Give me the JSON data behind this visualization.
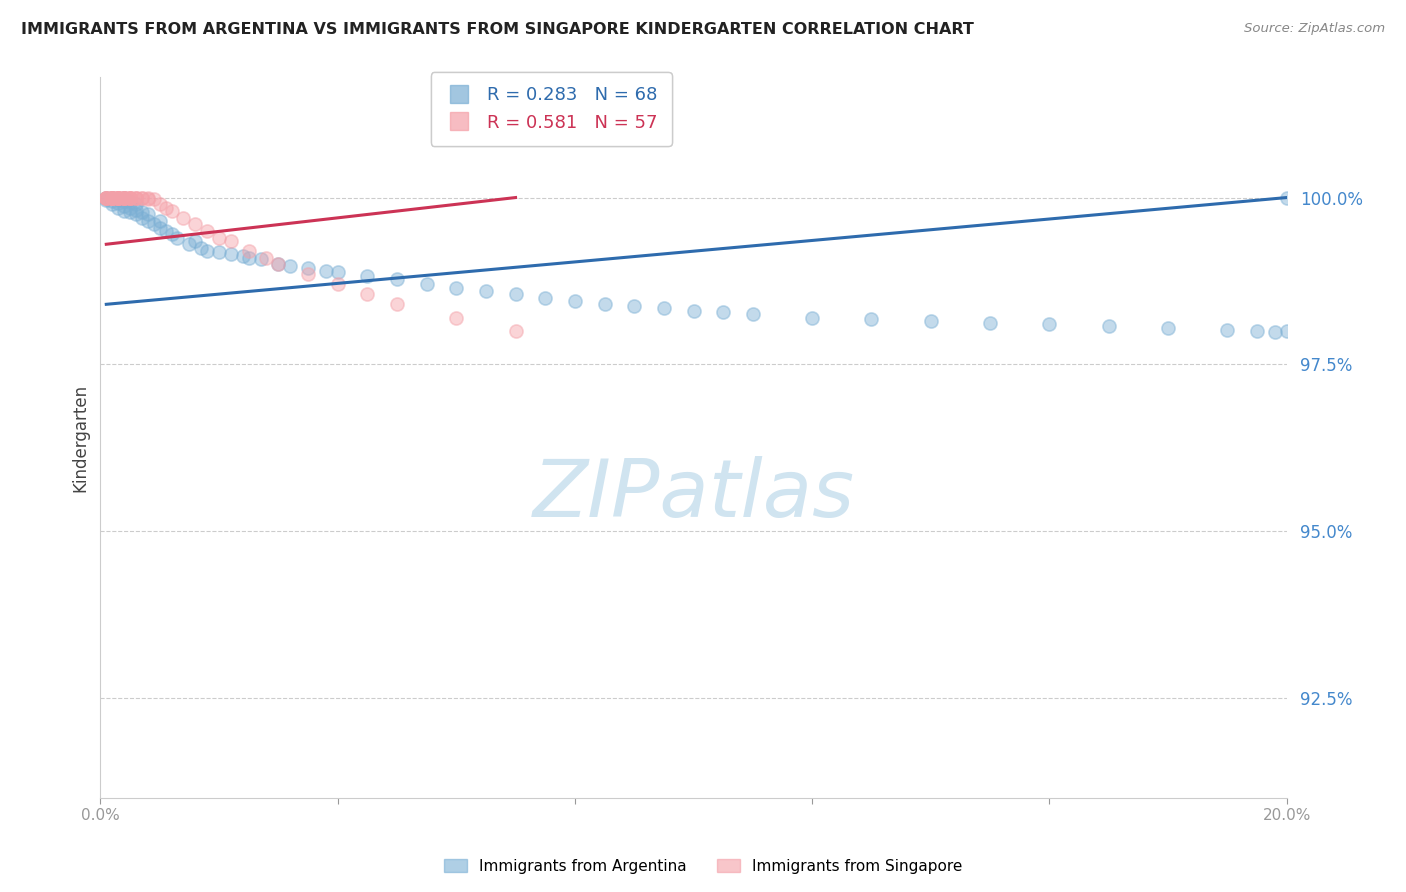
{
  "title": "IMMIGRANTS FROM ARGENTINA VS IMMIGRANTS FROM SINGAPORE KINDERGARTEN CORRELATION CHART",
  "source": "Source: ZipAtlas.com",
  "ylabel": "Kindergarten",
  "ytick_labels": [
    "100.0%",
    "97.5%",
    "95.0%",
    "92.5%"
  ],
  "ytick_values": [
    1.0,
    0.975,
    0.95,
    0.925
  ],
  "xlim": [
    0.0,
    0.2
  ],
  "ylim": [
    0.91,
    1.018
  ],
  "argentina_color": "#7BAFD4",
  "singapore_color": "#F4A0A8",
  "argentina_line_color": "#2E6BAD",
  "singapore_line_color": "#CC3355",
  "argentina_R": 0.283,
  "argentina_N": 68,
  "singapore_R": 0.581,
  "singapore_N": 57,
  "watermark": "ZIPatlas",
  "watermark_color": "#D0E4F0",
  "argentina_scatter_x": [
    0.001,
    0.001,
    0.002,
    0.002,
    0.002,
    0.003,
    0.003,
    0.003,
    0.004,
    0.004,
    0.004,
    0.004,
    0.005,
    0.005,
    0.005,
    0.006,
    0.006,
    0.006,
    0.007,
    0.007,
    0.008,
    0.008,
    0.009,
    0.01,
    0.01,
    0.011,
    0.012,
    0.013,
    0.015,
    0.016,
    0.017,
    0.018,
    0.02,
    0.022,
    0.024,
    0.025,
    0.027,
    0.03,
    0.032,
    0.035,
    0.038,
    0.04,
    0.045,
    0.05,
    0.055,
    0.06,
    0.065,
    0.07,
    0.075,
    0.08,
    0.085,
    0.09,
    0.095,
    0.1,
    0.105,
    0.11,
    0.12,
    0.13,
    0.14,
    0.15,
    0.16,
    0.17,
    0.18,
    0.19,
    0.195,
    0.198,
    0.2,
    0.2
  ],
  "argentina_scatter_y": [
    0.9997,
    1.0,
    0.999,
    0.9995,
    1.0,
    0.9985,
    0.9992,
    0.9998,
    0.998,
    0.9988,
    0.9995,
    1.0,
    0.9978,
    0.9985,
    0.9993,
    0.9975,
    0.9982,
    0.999,
    0.997,
    0.9978,
    0.9965,
    0.9975,
    0.996,
    0.9955,
    0.9965,
    0.995,
    0.9945,
    0.994,
    0.993,
    0.9935,
    0.9925,
    0.992,
    0.9918,
    0.9915,
    0.9912,
    0.991,
    0.9908,
    0.99,
    0.9898,
    0.9895,
    0.989,
    0.9888,
    0.9882,
    0.9878,
    0.987,
    0.9865,
    0.986,
    0.9855,
    0.985,
    0.9845,
    0.984,
    0.9838,
    0.9835,
    0.983,
    0.9828,
    0.9825,
    0.982,
    0.9818,
    0.9815,
    0.9812,
    0.981,
    0.9808,
    0.9805,
    0.9802,
    0.98,
    0.9798,
    0.98,
    1.0
  ],
  "singapore_scatter_x": [
    0.001,
    0.001,
    0.001,
    0.001,
    0.001,
    0.002,
    0.002,
    0.002,
    0.002,
    0.002,
    0.002,
    0.002,
    0.002,
    0.003,
    0.003,
    0.003,
    0.003,
    0.003,
    0.003,
    0.003,
    0.003,
    0.004,
    0.004,
    0.004,
    0.004,
    0.004,
    0.004,
    0.005,
    0.005,
    0.005,
    0.005,
    0.005,
    0.006,
    0.006,
    0.006,
    0.007,
    0.007,
    0.008,
    0.008,
    0.009,
    0.01,
    0.011,
    0.012,
    0.014,
    0.016,
    0.018,
    0.02,
    0.022,
    0.025,
    0.028,
    0.03,
    0.035,
    0.04,
    0.045,
    0.05,
    0.06,
    0.07
  ],
  "singapore_scatter_y": [
    1.0,
    1.0,
    1.0,
    1.0,
    1.0,
    1.0,
    1.0,
    1.0,
    1.0,
    1.0,
    1.0,
    1.0,
    1.0,
    1.0,
    1.0,
    1.0,
    1.0,
    1.0,
    1.0,
    1.0,
    1.0,
    1.0,
    1.0,
    1.0,
    1.0,
    1.0,
    1.0,
    1.0,
    1.0,
    1.0,
    1.0,
    1.0,
    1.0,
    1.0,
    1.0,
    1.0,
    1.0,
    1.0,
    0.9998,
    0.9998,
    0.999,
    0.9985,
    0.998,
    0.997,
    0.996,
    0.995,
    0.994,
    0.9935,
    0.992,
    0.991,
    0.99,
    0.9885,
    0.987,
    0.9855,
    0.984,
    0.982,
    0.98
  ],
  "argentina_trendline_x": [
    0.001,
    0.2
  ],
  "argentina_trendline_y": [
    0.984,
    1.0
  ],
  "singapore_trendline_x": [
    0.001,
    0.07
  ],
  "singapore_trendline_y": [
    0.993,
    1.0
  ]
}
